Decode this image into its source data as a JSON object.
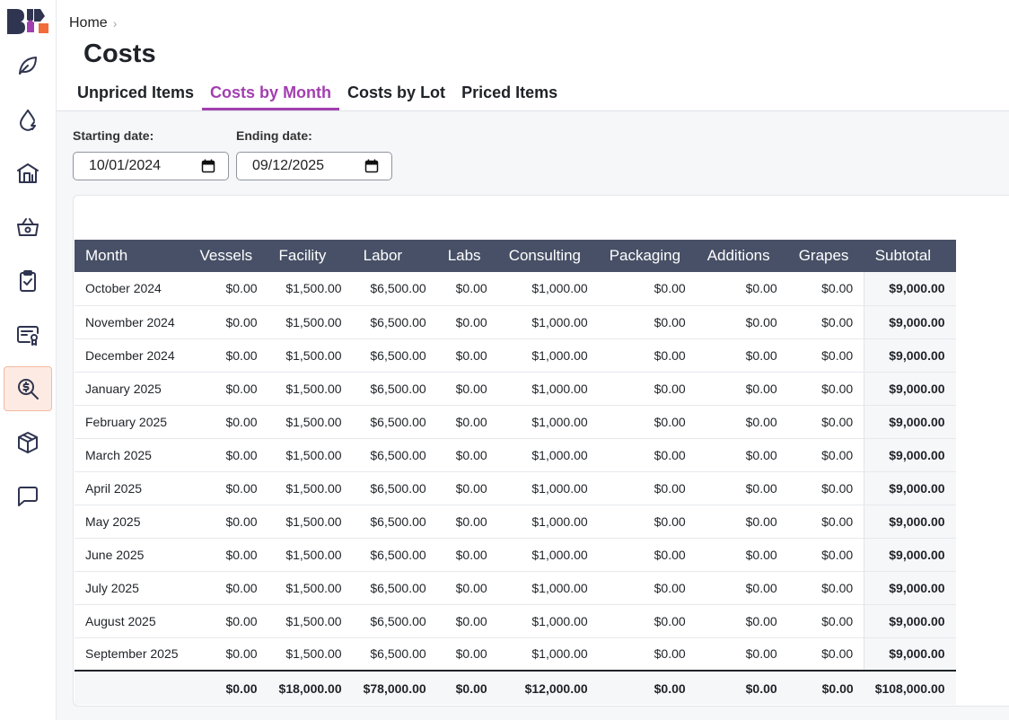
{
  "breadcrumb": {
    "home": "Home",
    "separator": "›"
  },
  "page": {
    "title": "Costs"
  },
  "tabs": [
    {
      "label": "Unpriced Items"
    },
    {
      "label": "Costs by Month"
    },
    {
      "label": "Costs by Lot"
    },
    {
      "label": "Priced Items"
    }
  ],
  "filters": {
    "start_label": "Starting date:",
    "start_value": "10/01/2024",
    "end_label": "Ending date:",
    "end_value": "09/12/2025"
  },
  "sidebar": {
    "items": [
      {
        "icon": "leaf-icon"
      },
      {
        "icon": "water-drop-icon"
      },
      {
        "icon": "building-icon"
      },
      {
        "icon": "basket-icon"
      },
      {
        "icon": "clipboard-check-icon"
      },
      {
        "icon": "certificate-icon"
      },
      {
        "icon": "cost-search-icon",
        "active": true
      },
      {
        "icon": "box-icon"
      },
      {
        "icon": "chat-icon"
      }
    ]
  },
  "colors": {
    "accent": "#a23fb0",
    "header_bg": "#475066",
    "active_nav_bg": "#fdebe3"
  },
  "table": {
    "headers": [
      "Month",
      "Vessels",
      "Facility",
      "Labor",
      "Labs",
      "Consulting",
      "Packaging",
      "Additions",
      "Grapes",
      "Subtotal"
    ],
    "rows": [
      [
        "October 2024",
        "$0.00",
        "$1,500.00",
        "$6,500.00",
        "$0.00",
        "$1,000.00",
        "$0.00",
        "$0.00",
        "$0.00",
        "$9,000.00"
      ],
      [
        "November 2024",
        "$0.00",
        "$1,500.00",
        "$6,500.00",
        "$0.00",
        "$1,000.00",
        "$0.00",
        "$0.00",
        "$0.00",
        "$9,000.00"
      ],
      [
        "December 2024",
        "$0.00",
        "$1,500.00",
        "$6,500.00",
        "$0.00",
        "$1,000.00",
        "$0.00",
        "$0.00",
        "$0.00",
        "$9,000.00"
      ],
      [
        "January 2025",
        "$0.00",
        "$1,500.00",
        "$6,500.00",
        "$0.00",
        "$1,000.00",
        "$0.00",
        "$0.00",
        "$0.00",
        "$9,000.00"
      ],
      [
        "February 2025",
        "$0.00",
        "$1,500.00",
        "$6,500.00",
        "$0.00",
        "$1,000.00",
        "$0.00",
        "$0.00",
        "$0.00",
        "$9,000.00"
      ],
      [
        "March 2025",
        "$0.00",
        "$1,500.00",
        "$6,500.00",
        "$0.00",
        "$1,000.00",
        "$0.00",
        "$0.00",
        "$0.00",
        "$9,000.00"
      ],
      [
        "April 2025",
        "$0.00",
        "$1,500.00",
        "$6,500.00",
        "$0.00",
        "$1,000.00",
        "$0.00",
        "$0.00",
        "$0.00",
        "$9,000.00"
      ],
      [
        "May 2025",
        "$0.00",
        "$1,500.00",
        "$6,500.00",
        "$0.00",
        "$1,000.00",
        "$0.00",
        "$0.00",
        "$0.00",
        "$9,000.00"
      ],
      [
        "June 2025",
        "$0.00",
        "$1,500.00",
        "$6,500.00",
        "$0.00",
        "$1,000.00",
        "$0.00",
        "$0.00",
        "$0.00",
        "$9,000.00"
      ],
      [
        "July 2025",
        "$0.00",
        "$1,500.00",
        "$6,500.00",
        "$0.00",
        "$1,000.00",
        "$0.00",
        "$0.00",
        "$0.00",
        "$9,000.00"
      ],
      [
        "August 2025",
        "$0.00",
        "$1,500.00",
        "$6,500.00",
        "$0.00",
        "$1,000.00",
        "$0.00",
        "$0.00",
        "$0.00",
        "$9,000.00"
      ],
      [
        "September 2025",
        "$0.00",
        "$1,500.00",
        "$6,500.00",
        "$0.00",
        "$1,000.00",
        "$0.00",
        "$0.00",
        "$0.00",
        "$9,000.00"
      ]
    ],
    "totals": [
      "",
      "$0.00",
      "$18,000.00",
      "$78,000.00",
      "$0.00",
      "$12,000.00",
      "$0.00",
      "$0.00",
      "$0.00",
      "$108,000.00"
    ]
  }
}
